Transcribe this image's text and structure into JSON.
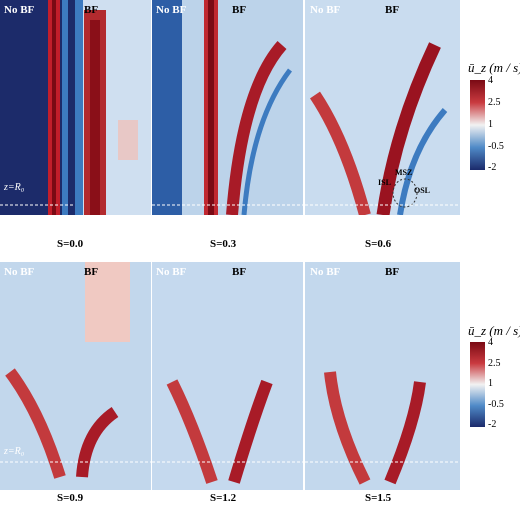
{
  "labels": {
    "no_bf": "No BF",
    "bf": "BF",
    "z_ref": "z=R₀"
  },
  "panels": [
    {
      "swirl": "S=0.0"
    },
    {
      "swirl": "S=0.3"
    },
    {
      "swirl": "S=0.6"
    },
    {
      "swirl": "S=0.9"
    },
    {
      "swirl": "S=1.2"
    },
    {
      "swirl": "S=1.5"
    }
  ],
  "annotations": {
    "isl": "ISL",
    "msz": "MSZ",
    "osl": "OSL"
  },
  "colorbar": {
    "title": "ū_z (m / s)",
    "ticks": [
      "4",
      "2.5",
      "1",
      "-0.5",
      "-2"
    ]
  },
  "colors": {
    "min": "#1b2a6b",
    "mid": "#f2f2f2",
    "max": "#7a0a14"
  }
}
